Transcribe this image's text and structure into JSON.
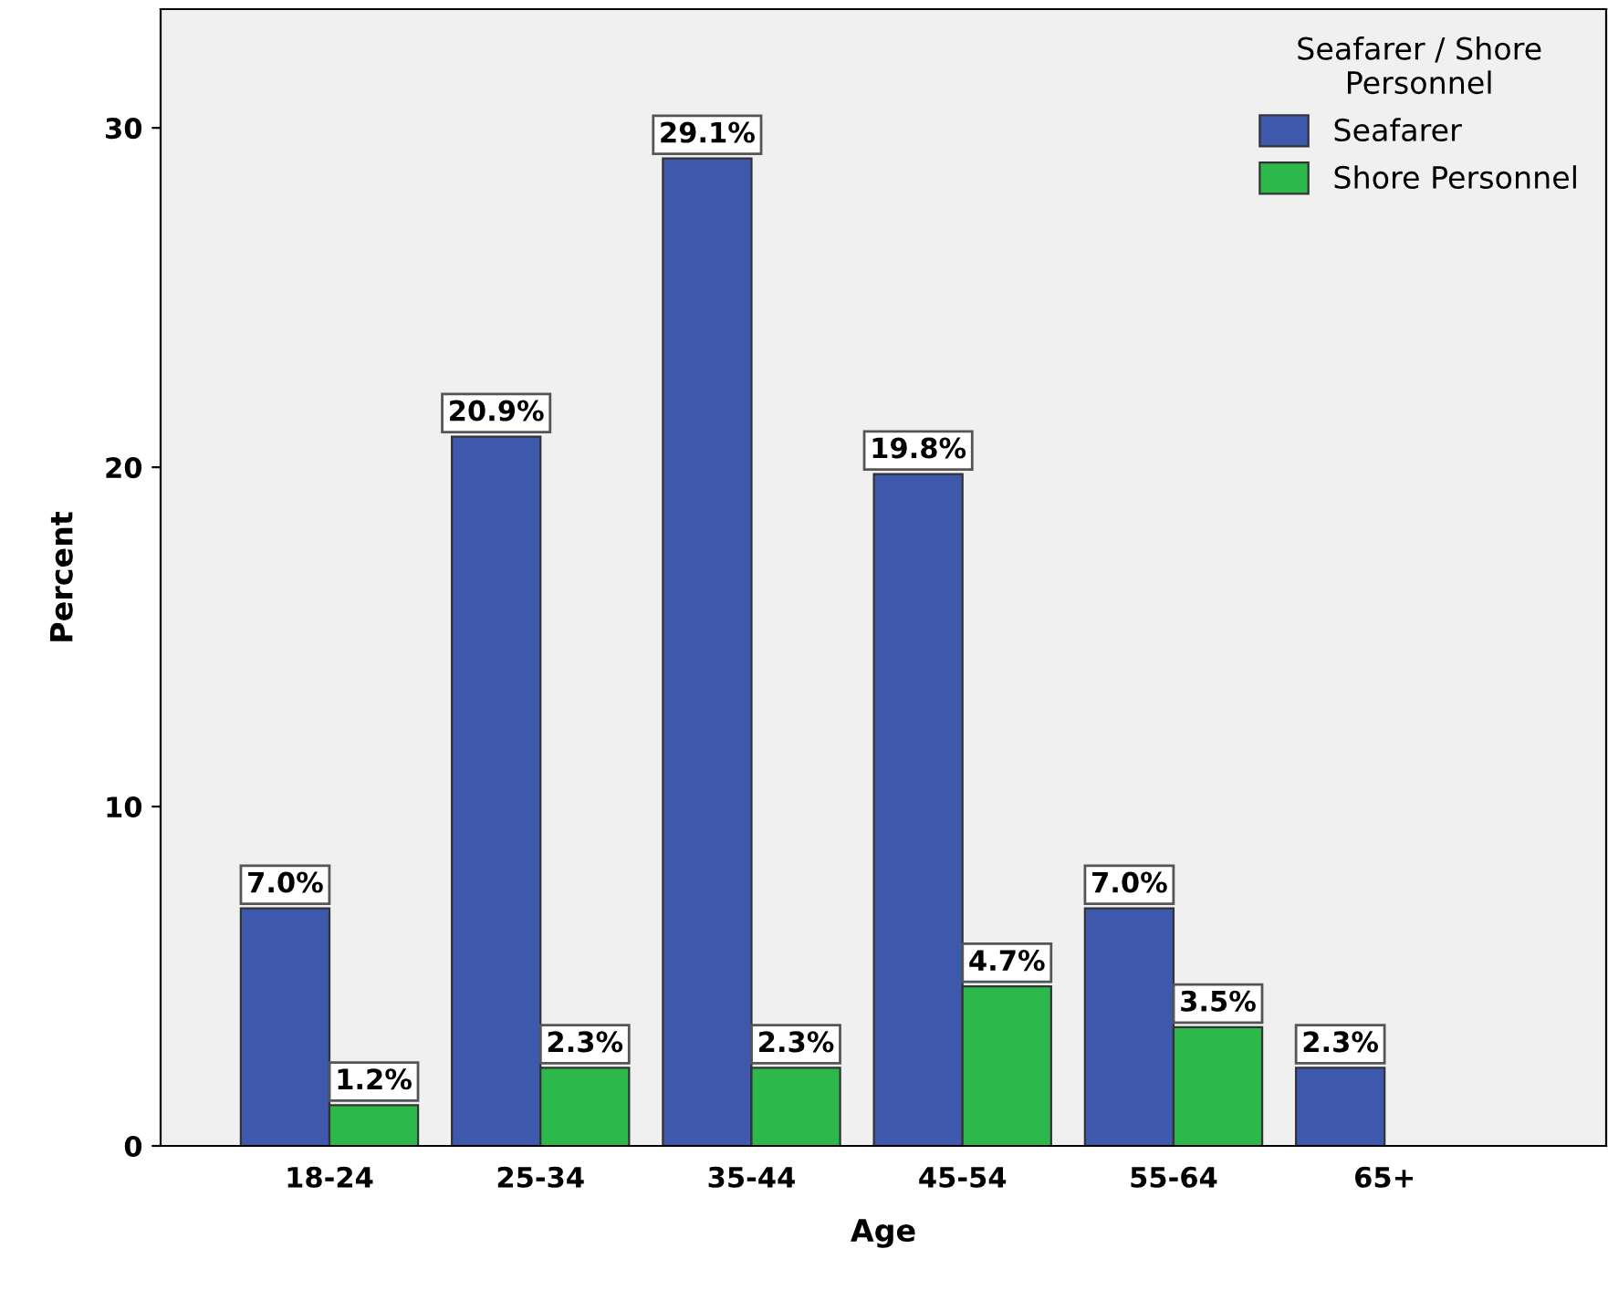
{
  "chart_data": {
    "type": "bar",
    "xlabel": "Age",
    "ylabel": "Percent",
    "legend_title": "Seafarer / Shore\nPersonnel",
    "legend": "top right",
    "grid": false,
    "categories": [
      "18-24",
      "25-34",
      "35-44",
      "45-54",
      "55-64",
      "65+"
    ],
    "ylim": [
      0,
      33.5
    ],
    "yticks": [
      0,
      10,
      20,
      30
    ],
    "series": [
      {
        "name": "Seafarer",
        "color": "#3e58ac",
        "values": [
          7.0,
          20.9,
          29.1,
          19.8,
          7.0,
          2.3
        ],
        "value_labels": [
          "7.0%",
          "20.9%",
          "29.1%",
          "19.8%",
          "7.0%",
          "2.3%"
        ]
      },
      {
        "name": "Shore Personnel",
        "color": "#2db84b",
        "values": [
          1.2,
          2.3,
          2.3,
          4.7,
          3.5,
          null
        ],
        "value_labels": [
          "1.2%",
          "2.3%",
          "2.3%",
          "4.7%",
          "3.5%",
          null
        ]
      }
    ]
  }
}
